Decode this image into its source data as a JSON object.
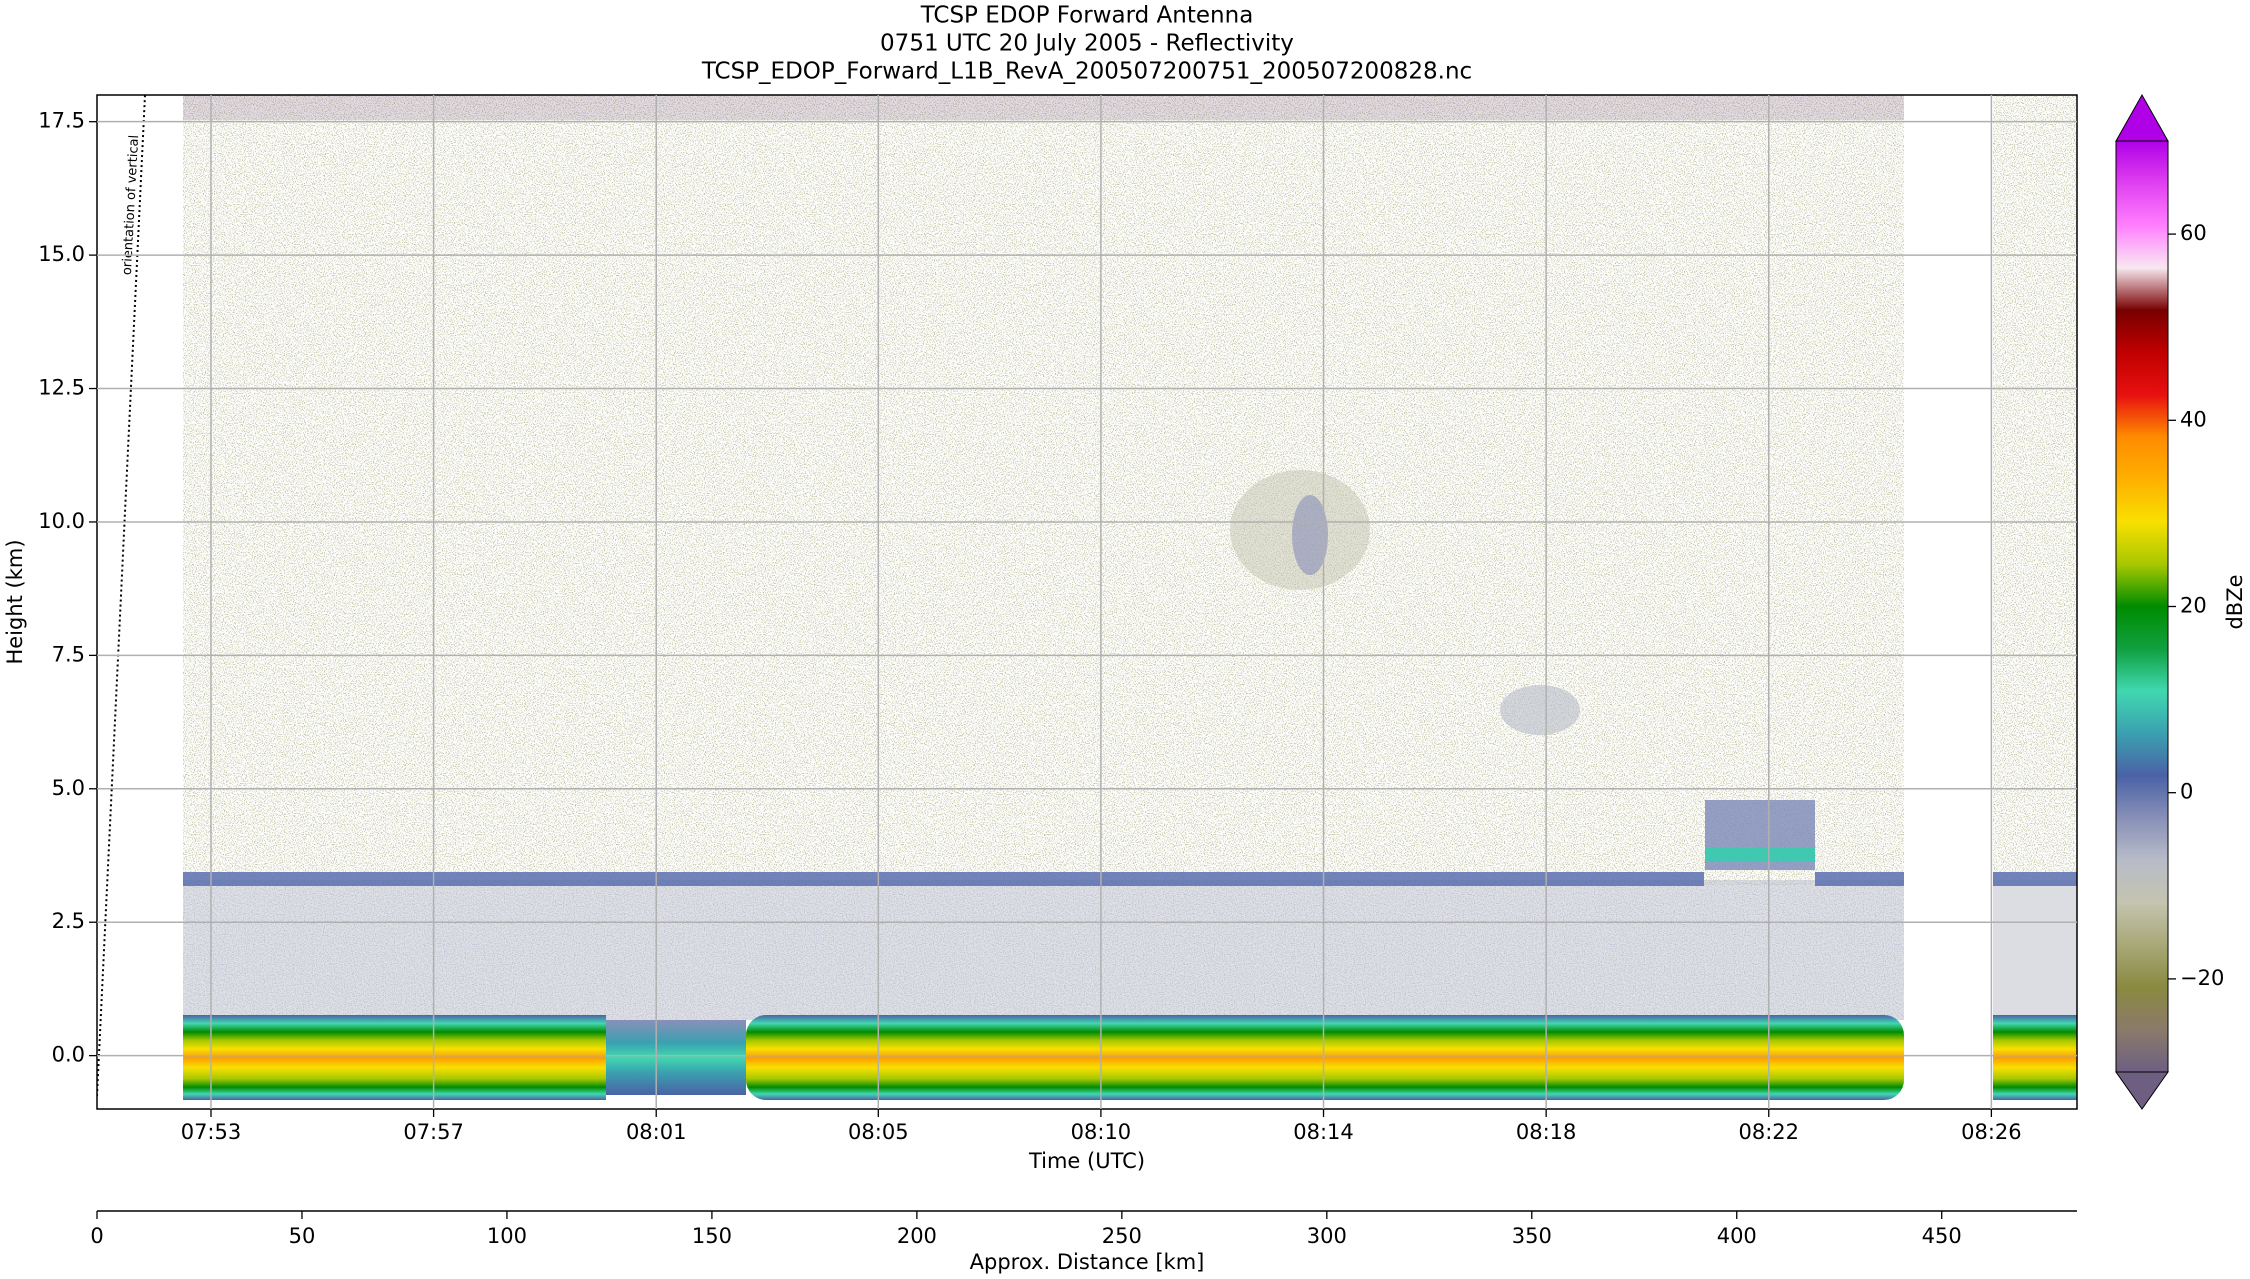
{
  "chart_data": {
    "type": "heatmap",
    "title": [
      "TCSP EDOP Forward Antenna",
      "0751 UTC 20 July 2005 - Reflectivity",
      "TCSP_EDOP_Forward_L1B_RevA_200507200751_200507200828.nc"
    ],
    "x_label": "Time (UTC)",
    "xlim": [
      0,
      37
    ],
    "xticks": [
      {
        "value": 2.13,
        "label": "07:53"
      },
      {
        "value": 6.29,
        "label": "07:57"
      },
      {
        "value": 10.45,
        "label": "08:01"
      },
      {
        "value": 14.6,
        "label": "08:05"
      },
      {
        "value": 18.76,
        "label": "08:10"
      },
      {
        "value": 22.92,
        "label": "08:14"
      },
      {
        "value": 27.08,
        "label": "08:18"
      },
      {
        "value": 31.24,
        "label": "08:22"
      },
      {
        "value": 35.4,
        "label": "08:26"
      }
    ],
    "y_label": "Height (km)",
    "ylim": [
      -1,
      18
    ],
    "yticks": [
      {
        "value": 0,
        "label": "0.0"
      },
      {
        "value": 2.5,
        "label": "2.5"
      },
      {
        "value": 5,
        "label": "5.0"
      },
      {
        "value": 7.5,
        "label": "7.5"
      },
      {
        "value": 10,
        "label": "10.0"
      },
      {
        "value": 12.5,
        "label": "12.5"
      },
      {
        "value": 15,
        "label": "15.0"
      },
      {
        "value": 17.5,
        "label": "17.5"
      }
    ],
    "x2_label": "Approx. Distance [km]",
    "x2lim": [
      0,
      483
    ],
    "x2ticks": [
      0,
      50,
      100,
      150,
      200,
      250,
      300,
      350,
      400,
      450
    ],
    "grid": true,
    "annotation": "orientation of vertical",
    "colorbar": {
      "label": "dBZe",
      "lim": [
        -30,
        70
      ],
      "ticks": [
        {
          "value": -20,
          "label": "−20"
        },
        0,
        20,
        40,
        60
      ],
      "colors": [
        "#6e5f82",
        "#8a7a6a",
        "#8a8a40",
        "#a8a878",
        "#c4c4b0",
        "#b8bcc8",
        "#8890b8",
        "#4a62a6",
        "#3aa0b0",
        "#40d8b0",
        "#10a040",
        "#008c00",
        "#a8c800",
        "#f8e000",
        "#ffb000",
        "#ff8c00",
        "#e81010",
        "#c00000",
        "#780000",
        "#f8e8f0",
        "#ff80ff",
        "#e040f0",
        "#b000e8"
      ],
      "extend": "both"
    }
  }
}
